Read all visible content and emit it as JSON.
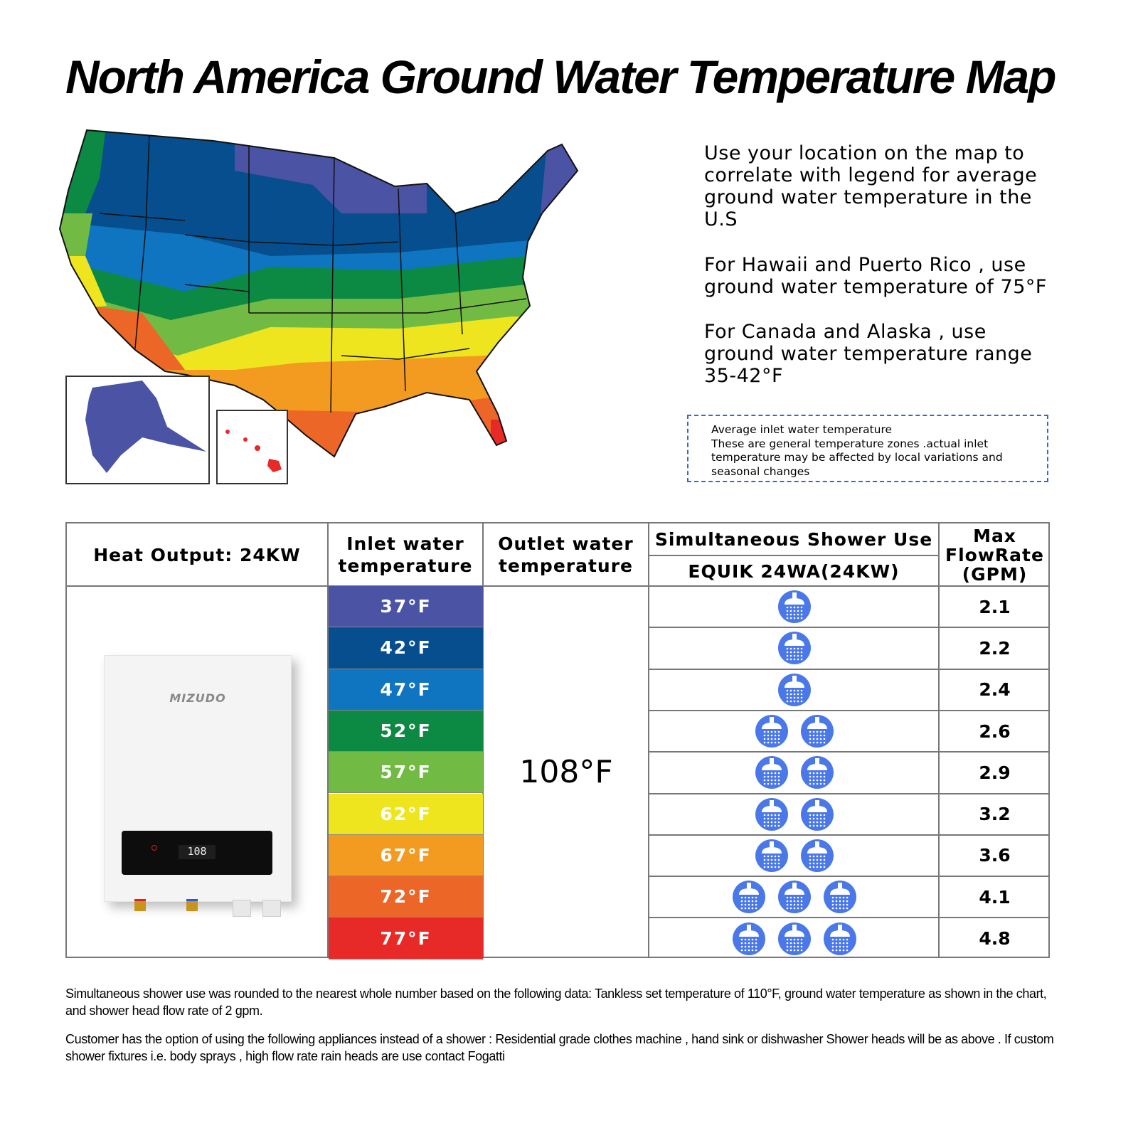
{
  "title": "North America Ground Water Temperature Map",
  "notes": [
    "Use your location on the map to correlate with legend for average ground water temperature in the U.S",
    "For Hawaii and Puerto Rico , use ground water temperature of 75°F",
    "For Canada and Alaska , use ground water temperature range 35-42°F"
  ],
  "info_box": {
    "title": "Average inlet water temperature",
    "body": "These are general temperature zones .actual inlet temperature may be affected by local variations and seasonal changes"
  },
  "table": {
    "heat_output": "Heat Output: 24KW",
    "inlet_header": "Inlet water temperature",
    "outlet_header": "Outlet water temperature",
    "shower_header": "Simultaneous Shower Use",
    "model": "EQUIK 24WA(24KW)",
    "flow_header": "Max FlowRate (GPM)",
    "outlet_value": "108°F",
    "rows": [
      {
        "inlet": "37°F",
        "color": "#4b53a5",
        "showers": 1,
        "flow": "2.1"
      },
      {
        "inlet": "42°F",
        "color": "#064e8e",
        "showers": 1,
        "flow": "2.2"
      },
      {
        "inlet": "47°F",
        "color": "#0f75c0",
        "showers": 1,
        "flow": "2.4"
      },
      {
        "inlet": "52°F",
        "color": "#0c8a43",
        "showers": 2,
        "flow": "2.6"
      },
      {
        "inlet": "57°F",
        "color": "#71bb45",
        "showers": 2,
        "flow": "2.9"
      },
      {
        "inlet": "62°F",
        "color": "#efe51f",
        "showers": 2,
        "flow": "3.2"
      },
      {
        "inlet": "67°F",
        "color": "#f39b20",
        "showers": 2,
        "flow": "3.6"
      },
      {
        "inlet": "72°F",
        "color": "#ec6628",
        "showers": 3,
        "flow": "4.1"
      },
      {
        "inlet": "77°F",
        "color": "#e72a27",
        "showers": 3,
        "flow": "4.8"
      }
    ]
  },
  "product": {
    "brand": "MIZUDO",
    "display": "108"
  },
  "footnotes": [
    "Simultaneous shower use was rounded to the nearest whole number based on the following data: Tankless set temperature of 110°F, ground water temperature as shown in the chart, and shower head flow rate of 2 gpm.",
    "Customer has the option of using the following appliances instead of a shower : Residential grade clothes machine , hand sink or dishwasher Shower heads will be as above . If custom shower fixtures i.e. body sprays , high flow rate rain heads are use contact Fogatti"
  ],
  "colors": {
    "shower_icon": "#4a78e8",
    "dashed_border": "#3b63d6"
  }
}
